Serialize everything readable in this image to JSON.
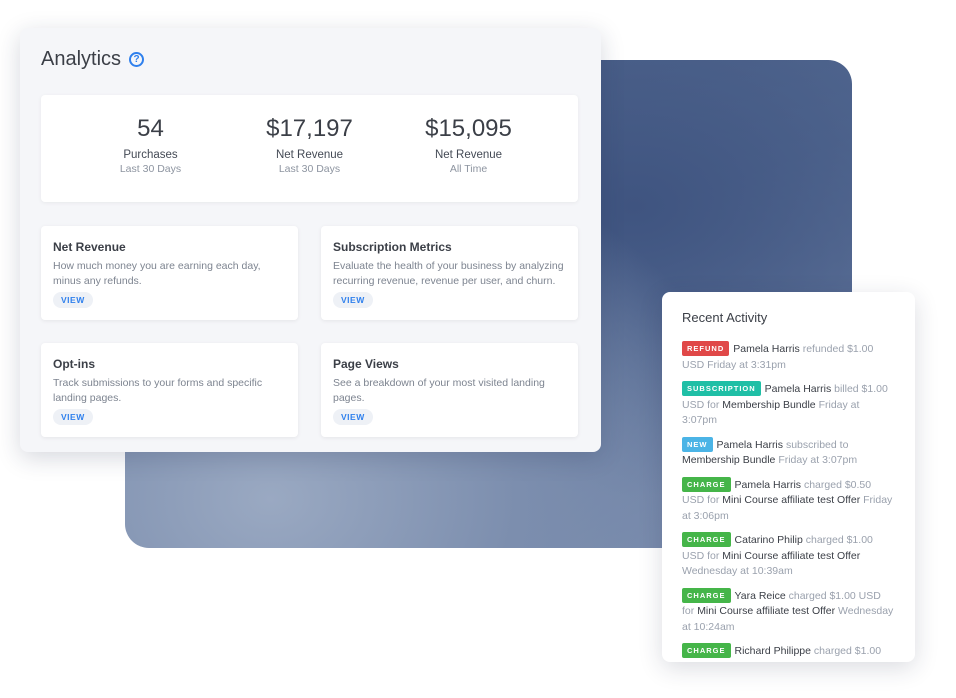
{
  "analytics": {
    "title": "Analytics",
    "help_icon": "question-circle-icon",
    "stats": [
      {
        "value": "54",
        "label": "Purchases",
        "sub": "Last 30 Days"
      },
      {
        "value": "$17,197",
        "label": "Net Revenue",
        "sub": "Last 30 Days"
      },
      {
        "value": "$15,095",
        "label": "Net Revenue",
        "sub": "All Time"
      }
    ],
    "cards": [
      {
        "title": "Net Revenue",
        "desc": "How much money you are earning each day, minus any refunds.",
        "action": "VIEW"
      },
      {
        "title": "Subscription Metrics",
        "desc": "Evaluate the health of your business by analyzing recurring revenue, revenue per user, and churn.",
        "action": "VIEW"
      },
      {
        "title": "Opt-ins",
        "desc": "Track submissions to your forms and specific landing pages.",
        "action": "VIEW"
      },
      {
        "title": "Page Views",
        "desc": "See a breakdown of your most visited landing pages.",
        "action": "VIEW"
      }
    ]
  },
  "activity": {
    "title": "Recent Activity",
    "colors": {
      "REFUND": "#e04848",
      "SUBSCRIPTION": "#1fbfa6",
      "NEW": "#4bb4e6",
      "CHARGE": "#45b549"
    },
    "items": [
      {
        "badge": "REFUND",
        "name": "Pamela Harris",
        "text": "refunded $1.00 USD",
        "product": "",
        "time": "Friday at 3:31pm"
      },
      {
        "badge": "SUBSCRIPTION",
        "name": "Pamela Harris",
        "text": "billed $1.00 USD for",
        "product": "Membership Bundle",
        "time": "Friday at 3:07pm"
      },
      {
        "badge": "NEW",
        "name": "Pamela Harris",
        "text": "subscribed to",
        "product": "Membership Bundle",
        "time": "Friday at 3:07pm"
      },
      {
        "badge": "CHARGE",
        "name": "Pamela Harris",
        "text": "charged $0.50 USD for",
        "product": "Mini Course affiliate test Offer",
        "time": "Friday at 3:06pm"
      },
      {
        "badge": "CHARGE",
        "name": "Catarino Philip",
        "text": "charged $1.00 USD for",
        "product": "Mini Course affiliate test Offer",
        "time": "Wednesday at 10:39am"
      },
      {
        "badge": "CHARGE",
        "name": "Yara Reice",
        "text": "charged $1.00 USD for",
        "product": "Mini Course affiliate test Offer",
        "time": "Wednesday at 10:24am"
      },
      {
        "badge": "CHARGE",
        "name": "Richard Philippe",
        "text": "charged $1.00",
        "product": "",
        "time": ""
      }
    ]
  }
}
